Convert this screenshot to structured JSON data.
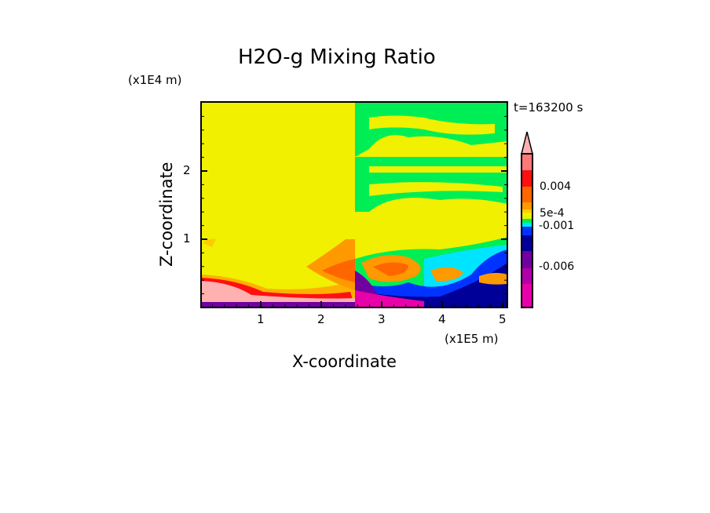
{
  "chart_data": {
    "type": "heatmap",
    "title": "H2O-g Mixing Ratio",
    "xlabel": "X-coordinate",
    "ylabel": "Z-coordinate",
    "x_unit_label": "(x1E5 m)",
    "y_unit_label": "(x1E4 m)",
    "time_label": "t=163200 s",
    "xlim": [
      0,
      5.08
    ],
    "ylim": [
      0,
      3.0
    ],
    "x_ticks": [
      "1",
      "2",
      "3",
      "4",
      "5"
    ],
    "y_ticks": [
      "1",
      "2"
    ],
    "colorbar": {
      "labels": [
        "0.004",
        "5e-4",
        "-0.001",
        "-0.006"
      ],
      "colors_top_to_bottom": [
        "#ffb0b0",
        "#ff7878",
        "#ff1010",
        "#ff6600",
        "#ff9900",
        "#ffcc00",
        "#f0f000",
        "#e8f000",
        "#00ee55",
        "#00e5ff",
        "#0033ff",
        "#000099",
        "#7000a0",
        "#b000a8",
        "#e800a8"
      ],
      "extend": "max"
    },
    "description_regions": "left half (x<2.55) mostly yellow ~0 with pink/red near surface; right half green/yellow bands aloft, orange/blue/purple mixing below z=0.9"
  }
}
